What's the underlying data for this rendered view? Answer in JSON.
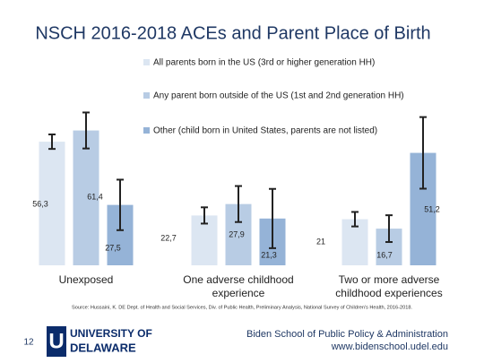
{
  "chart_data": {
    "type": "bar",
    "title": "NSCH 2016-2018 ACEs and Parent Place of Birth",
    "categories": [
      "Unexposed",
      "One adverse childhood experience",
      "Two or more adverse childhood experiences"
    ],
    "series": [
      {
        "name": "All parents born in the US (3rd or higher generation HH)",
        "color": "#dce6f2",
        "values": [
          56.3,
          22.7,
          21
        ],
        "value_labels": [
          "56,3",
          "22,7",
          "21"
        ],
        "errors": [
          3.3,
          3.7,
          3.3
        ]
      },
      {
        "name": "Any parent born outside of the US (1st and 2nd generation HH)",
        "color": "#b8cce4",
        "values": [
          61.4,
          27.9,
          16.7
        ],
        "value_labels": [
          "61,4",
          "27,9",
          "16,7"
        ],
        "errors": [
          8.2,
          8.2,
          6.1
        ]
      },
      {
        "name": "Other (child born in United States, parents are not listed)",
        "color": "#95b3d7",
        "values": [
          27.5,
          21.3,
          51.2
        ],
        "value_labels": [
          "27,5",
          "21,3",
          "51,2"
        ],
        "errors": [
          11.5,
          13.5,
          16.3
        ]
      }
    ],
    "legend": "top"
  },
  "source": "Source: Hussaini, K. DE Dept. of Health and Social Services, Div. of Public Health, Preliminary Analysis, National Survey of Children's Health, 2016-2018.",
  "page_number": "12",
  "logo": {
    "line1": "UNIVERSITY OF",
    "line2": "DELAWARE"
  },
  "footer": {
    "school": "Biden School of Public Policy & Administration",
    "url": "www.bidenschool.udel.edu"
  }
}
